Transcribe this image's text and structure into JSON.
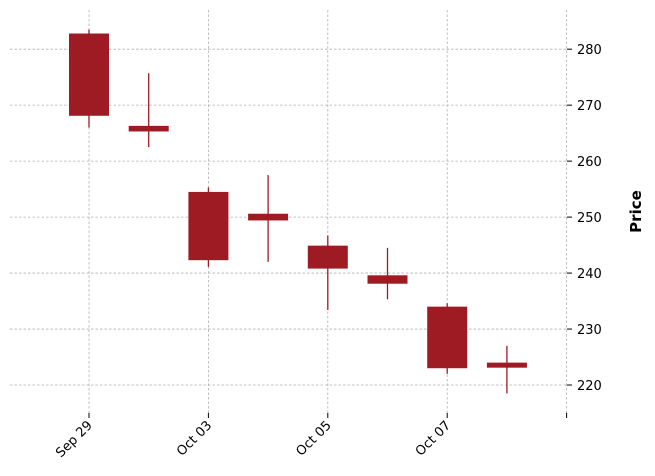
{
  "chart_data": {
    "type": "candlestick",
    "title": "",
    "xlabel": "",
    "ylabel": "Price",
    "ylabel_position": "right",
    "colors": {
      "up": "#2ca02c",
      "down": "#9e1b24",
      "grid": "#b0b0b0"
    },
    "grid": true,
    "ylim": [
      215,
      287
    ],
    "yticks": [
      220,
      230,
      240,
      250,
      260,
      270,
      280
    ],
    "x_tick_labels": [
      {
        "index": 0,
        "label": "Sep 29"
      },
      {
        "index": 2,
        "label": "Oct 03"
      },
      {
        "index": 4,
        "label": "Oct 05"
      },
      {
        "index": 6,
        "label": "Oct 07"
      },
      {
        "index": 8,
        "label": ""
      }
    ],
    "candles": [
      {
        "index": 0,
        "open": 282.8,
        "high": 283.5,
        "low": 266.0,
        "close": 268.1
      },
      {
        "index": 1,
        "open": 266.3,
        "high": 275.7,
        "low": 262.5,
        "close": 265.3
      },
      {
        "index": 2,
        "open": 254.5,
        "high": 255.3,
        "low": 241.1,
        "close": 242.3
      },
      {
        "index": 3,
        "open": 250.6,
        "high": 257.5,
        "low": 242.0,
        "close": 249.4
      },
      {
        "index": 4,
        "open": 244.9,
        "high": 246.7,
        "low": 233.4,
        "close": 240.8
      },
      {
        "index": 5,
        "open": 239.6,
        "high": 244.5,
        "low": 235.3,
        "close": 238.1
      },
      {
        "index": 6,
        "open": 234.0,
        "high": 234.6,
        "low": 222.0,
        "close": 223.0
      },
      {
        "index": 7,
        "open": 224.0,
        "high": 227.0,
        "low": 218.5,
        "close": 223.1
      }
    ]
  }
}
